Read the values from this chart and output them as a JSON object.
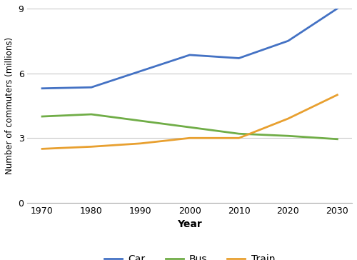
{
  "years": [
    1970,
    1980,
    1990,
    2000,
    2010,
    2020,
    2030
  ],
  "car": [
    5.3,
    5.35,
    6.1,
    6.85,
    6.7,
    7.5,
    9.0
  ],
  "bus": [
    4.0,
    4.1,
    3.8,
    3.5,
    3.2,
    3.1,
    2.95
  ],
  "train": [
    2.5,
    2.6,
    2.75,
    3.0,
    3.0,
    3.9,
    5.0
  ],
  "car_color": "#4472C4",
  "bus_color": "#70AD47",
  "train_color": "#E8A030",
  "xlabel": "Year",
  "ylabel": "Number of commuters (millions)",
  "xlim": [
    1967,
    2033
  ],
  "ylim": [
    0,
    9
  ],
  "yticks": [
    0,
    3,
    6,
    9
  ],
  "xticks": [
    1970,
    1980,
    1990,
    2000,
    2010,
    2020,
    2030
  ],
  "legend_labels": [
    "Car",
    "Bus",
    "Train"
  ],
  "linewidth": 2.0,
  "background_color": "#ffffff",
  "grid_color": "#c8c8c8"
}
